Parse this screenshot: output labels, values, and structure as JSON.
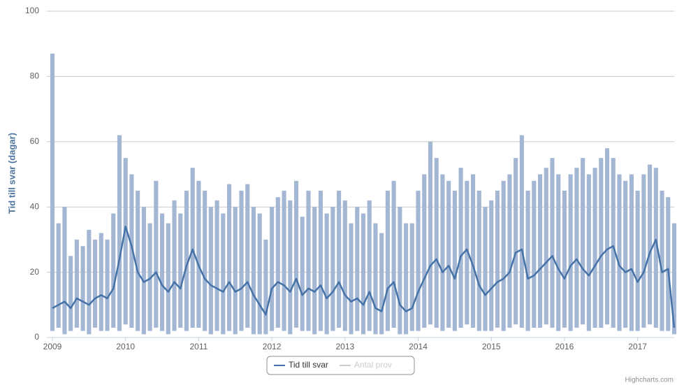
{
  "chart_data": {
    "type": "line",
    "y_axis_label": "Tid till svar (dagar)",
    "credits": "Highcharts.com",
    "xlim": [
      2009,
      2017.5
    ],
    "xticks": [
      2009,
      2010,
      2011,
      2012,
      2013,
      2014,
      2015,
      2016,
      2017
    ],
    "ylim": [
      0,
      100
    ],
    "yticks": [
      0,
      20,
      40,
      60,
      80,
      100
    ],
    "grid": true,
    "legend": "bottom",
    "x": [
      2009,
      2009.0833,
      2009.1667,
      2009.25,
      2009.3333,
      2009.4167,
      2009.5,
      2009.5833,
      2009.6667,
      2009.75,
      2009.8333,
      2009.9167,
      2010,
      2010.0833,
      2010.1667,
      2010.25,
      2010.3333,
      2010.4167,
      2010.5,
      2010.5833,
      2010.6667,
      2010.75,
      2010.8333,
      2010.9167,
      2011,
      2011.0833,
      2011.1667,
      2011.25,
      2011.3333,
      2011.4167,
      2011.5,
      2011.5833,
      2011.6667,
      2011.75,
      2011.8333,
      2011.9167,
      2012,
      2012.0833,
      2012.1667,
      2012.25,
      2012.3333,
      2012.4167,
      2012.5,
      2012.5833,
      2012.6667,
      2012.75,
      2012.8333,
      2012.9167,
      2013,
      2013.0833,
      2013.1667,
      2013.25,
      2013.3333,
      2013.4167,
      2013.5,
      2013.5833,
      2013.6667,
      2013.75,
      2013.8333,
      2013.9167,
      2014,
      2014.0833,
      2014.1667,
      2014.25,
      2014.3333,
      2014.4167,
      2014.5,
      2014.5833,
      2014.6667,
      2014.75,
      2014.8333,
      2014.9167,
      2015,
      2015.0833,
      2015.1667,
      2015.25,
      2015.3333,
      2015.4167,
      2015.5,
      2015.5833,
      2015.6667,
      2015.75,
      2015.8333,
      2015.9167,
      2016,
      2016.0833,
      2016.1667,
      2016.25,
      2016.3333,
      2016.4167,
      2016.5,
      2016.5833,
      2016.6667,
      2016.75,
      2016.8333,
      2016.9167,
      2017,
      2017.0833,
      2017.1667,
      2017.25,
      2017.3333,
      2017.4167,
      2017.5
    ],
    "series": [
      {
        "name": "Tid till svar",
        "color": "#4572a7",
        "band_color": "#a3b6d3",
        "values": [
          9,
          10,
          11,
          9,
          12,
          11,
          10,
          12,
          13,
          12,
          15,
          24,
          34,
          28,
          20,
          17,
          18,
          20,
          16,
          14,
          17,
          15,
          22,
          27,
          22,
          18,
          16,
          15,
          14,
          17,
          14,
          15,
          17,
          13,
          10,
          7,
          15,
          17,
          16,
          14,
          18,
          13,
          15,
          14,
          16,
          12,
          14,
          17,
          13,
          11,
          12,
          10,
          14,
          9,
          8,
          15,
          17,
          10,
          8,
          9,
          14,
          18,
          22,
          24,
          20,
          22,
          18,
          25,
          27,
          22,
          16,
          13,
          15,
          17,
          18,
          20,
          26,
          27,
          18,
          19,
          21,
          23,
          25,
          21,
          18,
          22,
          24,
          21,
          19,
          22,
          25,
          27,
          28,
          22,
          20,
          21,
          17,
          20,
          26,
          30,
          20,
          21,
          3
        ],
        "high": [
          87,
          35,
          40,
          25,
          30,
          28,
          33,
          30,
          32,
          30,
          38,
          62,
          55,
          50,
          45,
          40,
          35,
          48,
          38,
          35,
          42,
          38,
          45,
          52,
          48,
          45,
          40,
          42,
          38,
          47,
          40,
          45,
          47,
          40,
          38,
          30,
          40,
          43,
          45,
          42,
          48,
          37,
          45,
          40,
          45,
          38,
          40,
          45,
          42,
          35,
          40,
          38,
          42,
          35,
          32,
          45,
          48,
          40,
          35,
          35,
          45,
          50,
          60,
          55,
          50,
          48,
          45,
          52,
          48,
          50,
          45,
          40,
          42,
          45,
          48,
          50,
          55,
          62,
          45,
          48,
          50,
          52,
          55,
          50,
          45,
          50,
          52,
          55,
          50,
          52,
          55,
          58,
          55,
          50,
          48,
          50,
          45,
          50,
          53,
          52,
          45,
          43,
          35
        ],
        "low": [
          2,
          3,
          1,
          2,
          3,
          2,
          1,
          3,
          2,
          2,
          3,
          2,
          4,
          3,
          2,
          1,
          2,
          3,
          2,
          1,
          2,
          3,
          2,
          3,
          3,
          2,
          1,
          2,
          1,
          2,
          1,
          2,
          3,
          1,
          1,
          1,
          2,
          3,
          2,
          1,
          3,
          2,
          2,
          1,
          2,
          1,
          2,
          3,
          2,
          1,
          2,
          1,
          2,
          1,
          1,
          2,
          3,
          1,
          1,
          2,
          2,
          3,
          4,
          3,
          2,
          3,
          2,
          3,
          4,
          3,
          2,
          2,
          2,
          3,
          2,
          3,
          4,
          3,
          2,
          3,
          3,
          4,
          3,
          2,
          3,
          2,
          3,
          4,
          2,
          3,
          3,
          4,
          3,
          2,
          3,
          2,
          2,
          3,
          4,
          3,
          2,
          2,
          1
        ]
      },
      {
        "name": "Antal prov",
        "color": "#cccccc",
        "visible": false
      }
    ]
  }
}
